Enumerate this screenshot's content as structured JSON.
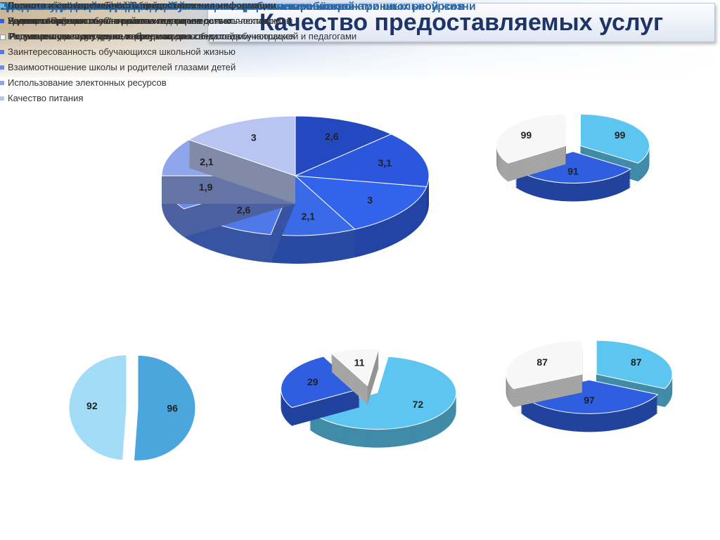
{
  "header": {
    "title": "Качество предоставляемых услуг"
  },
  "chart_data": [
    {
      "type": "pie3d",
      "title": "Степень удовлетворённости обучающихся различными сторонами школьной жизни",
      "categories": [
        "Внутренний психологический климат в школе",
        "Взаимоотношения обучающихся с педагогическим коллективом",
        "Развитие индивидуальных, творческих способностей обучающихся",
        null,
        "Заинтересованность обучающихся школьной жизнью",
        "Взаимоотношение школы и родителей глазами детей",
        "Использование электонных ресурсов",
        "Качество питания"
      ],
      "values": [
        2.6,
        3.1,
        3,
        2.1,
        2.6,
        1.9,
        2.1,
        3
      ],
      "value_labels": [
        "2,6",
        "3,1",
        "3",
        "2,1",
        "2,6",
        "1,9",
        "2,1",
        "3"
      ],
      "colors": [
        "#2448c0",
        "#2b57dc",
        "#3163ec",
        "#3a6ae8",
        "#4f78e8",
        "#6c8ae8",
        "#8fa6ec",
        "#b8c5f2"
      ]
    },
    {
      "type": "pie3d",
      "title": "Психологический климат в школе",
      "categories": [
        "Родители ощущают любовь ребёнка к школе",
        "Родители ощущают себя желанными в школе",
        "Родители чувствуют дружелюбие со сторны педагогов"
      ],
      "values": [
        99,
        91,
        99
      ],
      "colors": [
        "#5cc6f0",
        "#2f5fe0",
        "#f7f7f7"
      ]
    },
    {
      "type": "pie",
      "title": "Удовлетворённость родителей участием в управлении школой",
      "categories": [
        "Удовлетворённость работой Попечительского совета школы",
        "Наличие \"Права голоса\" в решении вопросов деятельности школы"
      ],
      "values": [
        96,
        92
      ],
      "colors": [
        "#4aa6dc",
        "#a3dcf6"
      ]
    },
    {
      "type": "pie3d",
      "title": "Уровень владения информацией о школе и использование электронных ресурсов",
      "categories": [
        "Достаточно владеют информацией о школе",
        "Посещаемость школьного сайта",
        "Использование электронных ресурсов для связи с администрацией и педагогами"
      ],
      "values": [
        72,
        29,
        11
      ],
      "colors": [
        "#5cc6f0",
        "#2f5fe0",
        "#f7f7f7"
      ]
    },
    {
      "type": "pie3d",
      "title": "Владение информацией о достижениях и проблемах ребёнка",
      "categories": [
        "Полнота и своевременность предоставления информации",
        "Удовлетворённость контроля за посещаемостью",
        "Регулярность получения информации"
      ],
      "values": [
        87,
        97,
        87
      ],
      "colors": [
        "#5cc6f0",
        "#2f5fe0",
        "#f7f7f7"
      ]
    }
  ]
}
